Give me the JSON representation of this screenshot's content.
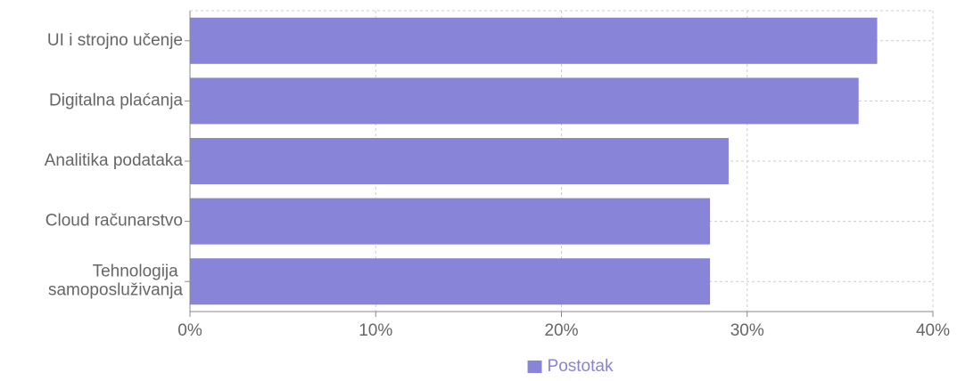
{
  "chart_data": {
    "type": "barh",
    "categories": [
      "UI i strojno učenje",
      "Digitalna plaćanja",
      "Analitika podataka",
      "Cloud računarstvo",
      "Tehnologija samoposluživanja"
    ],
    "series": [
      {
        "name": "Postotak",
        "color": "#8884d8",
        "values": [
          37,
          36,
          29,
          28,
          28
        ]
      }
    ],
    "xlim": [
      0,
      40
    ],
    "xticks": [
      {
        "value": 0,
        "label": "0%"
      },
      {
        "value": 10,
        "label": "10%"
      },
      {
        "value": 20,
        "label": "20%"
      },
      {
        "value": 30,
        "label": "30%"
      },
      {
        "value": 40,
        "label": "40%"
      }
    ],
    "grid": true,
    "legend": "bottom"
  }
}
